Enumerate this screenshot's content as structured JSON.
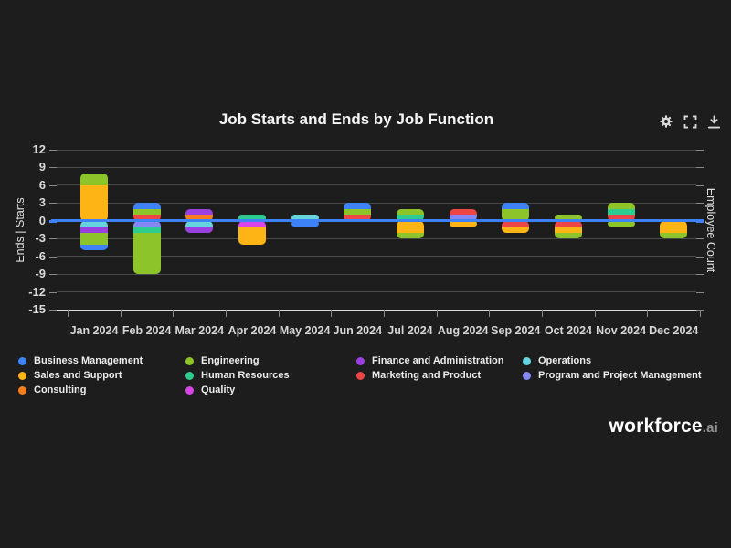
{
  "brand": {
    "name": "workforce",
    "suffix": ".ai"
  },
  "toolbar": {
    "icons": [
      "settings",
      "fullscreen",
      "download"
    ]
  },
  "chart_data": {
    "type": "bar",
    "stacked": true,
    "title": "Job Starts and Ends by Job Function",
    "categories": [
      "Jan 2024",
      "Feb 2024",
      "Mar 2024",
      "Apr 2024",
      "May 2024",
      "Jun 2024",
      "Jul 2024",
      "Aug 2024",
      "Sep 2024",
      "Oct 2024",
      "Nov 2024",
      "Dec 2024"
    ],
    "y_axis": {
      "label": "Ends | Starts",
      "ticks": [
        12,
        9,
        6,
        3,
        0,
        -3,
        -6,
        -9,
        -12,
        -15
      ],
      "min": -15,
      "max": 12
    },
    "right_axis": {
      "label": "Employee Count"
    },
    "zero_line_color": "#3d82f6",
    "grid_color": "#4a4a4a",
    "background_color": "#1d1d1d",
    "function_colors": {
      "Business Management": "#3d82f6",
      "Sales and Support": "#fdb414",
      "Consulting": "#f87d1d",
      "Engineering": "#8cc42a",
      "Human Resources": "#2dcb8e",
      "Quality": "#d944e9",
      "Finance and Administration": "#9b40e0",
      "Marketing and Product": "#ee4545",
      "Operations": "#66d4dd",
      "Program and Project Management": "#8588f4"
    },
    "legend_columns": [
      [
        "Business Management",
        "Sales and Support",
        "Consulting"
      ],
      [
        "Engineering",
        "Human Resources",
        "Quality"
      ],
      [
        "Finance and Administration",
        "Marketing and Product"
      ],
      [
        "Operations",
        "Program and Project Management"
      ]
    ],
    "months": [
      {
        "label": "Jan 2024",
        "starts": [
          {
            "function": "Sales and Support",
            "count": 6
          },
          {
            "function": "Engineering",
            "count": 2
          }
        ],
        "ends": [
          {
            "function": "Operations",
            "count": 1
          },
          {
            "function": "Finance and Administration",
            "count": 1
          },
          {
            "function": "Engineering",
            "count": 2
          },
          {
            "function": "Business Management",
            "count": 1
          }
        ]
      },
      {
        "label": "Feb 2024",
        "starts": [
          {
            "function": "Marketing and Product",
            "count": 1
          },
          {
            "function": "Engineering",
            "count": 1
          },
          {
            "function": "Business Management",
            "count": 1
          }
        ],
        "ends": [
          {
            "function": "Program and Project Management",
            "count": 1
          },
          {
            "function": "Human Resources",
            "count": 1
          },
          {
            "function": "Engineering",
            "count": 7
          }
        ]
      },
      {
        "label": "Mar 2024",
        "starts": [
          {
            "function": "Consulting",
            "count": 1
          },
          {
            "function": "Finance and Administration",
            "count": 1
          }
        ],
        "ends": [
          {
            "function": "Operations",
            "count": 1
          },
          {
            "function": "Finance and Administration",
            "count": 1
          }
        ]
      },
      {
        "label": "Apr 2024",
        "starts": [
          {
            "function": "Human Resources",
            "count": 1
          }
        ],
        "ends": [
          {
            "function": "Quality",
            "count": 1
          },
          {
            "function": "Sales and Support",
            "count": 3
          }
        ]
      },
      {
        "label": "May 2024",
        "starts": [
          {
            "function": "Operations",
            "count": 1
          }
        ],
        "ends": [
          {
            "function": "Business Management",
            "count": 1
          }
        ]
      },
      {
        "label": "Jun 2024",
        "starts": [
          {
            "function": "Marketing and Product",
            "count": 1
          },
          {
            "function": "Engineering",
            "count": 1
          },
          {
            "function": "Business Management",
            "count": 1
          }
        ],
        "ends": []
      },
      {
        "label": "Jul 2024",
        "starts": [
          {
            "function": "Human Resources",
            "count": 1
          },
          {
            "function": "Engineering",
            "count": 1
          }
        ],
        "ends": [
          {
            "function": "Sales and Support",
            "count": 2
          },
          {
            "function": "Engineering",
            "count": 1
          }
        ]
      },
      {
        "label": "Aug 2024",
        "starts": [
          {
            "function": "Program and Project Management",
            "count": 1
          },
          {
            "function": "Marketing and Product",
            "count": 1
          }
        ],
        "ends": [
          {
            "function": "Sales and Support",
            "count": 1
          }
        ]
      },
      {
        "label": "Sep 2024",
        "starts": [
          {
            "function": "Engineering",
            "count": 2
          },
          {
            "function": "Business Management",
            "count": 1
          }
        ],
        "ends": [
          {
            "function": "Marketing and Product",
            "count": 1
          },
          {
            "function": "Sales and Support",
            "count": 1
          }
        ]
      },
      {
        "label": "Oct 2024",
        "starts": [
          {
            "function": "Engineering",
            "count": 1
          }
        ],
        "ends": [
          {
            "function": "Marketing and Product",
            "count": 1
          },
          {
            "function": "Sales and Support",
            "count": 1
          },
          {
            "function": "Engineering",
            "count": 1
          }
        ]
      },
      {
        "label": "Nov 2024",
        "starts": [
          {
            "function": "Marketing and Product",
            "count": 1
          },
          {
            "function": "Human Resources",
            "count": 1
          },
          {
            "function": "Engineering",
            "count": 1
          }
        ],
        "ends": [
          {
            "function": "Engineering",
            "count": 1
          }
        ]
      },
      {
        "label": "Dec 2024",
        "starts": [],
        "ends": [
          {
            "function": "Sales and Support",
            "count": 2
          },
          {
            "function": "Engineering",
            "count": 1
          }
        ]
      }
    ]
  }
}
